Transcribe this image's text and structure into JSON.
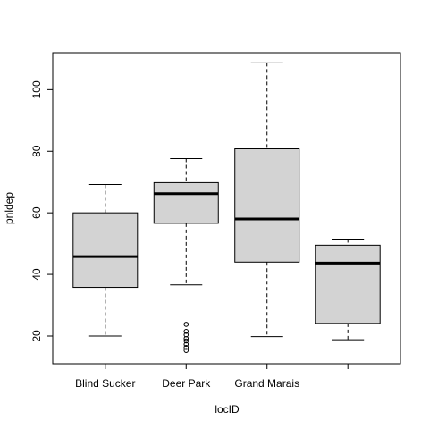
{
  "chart_data": {
    "type": "box",
    "xlabel": "locID",
    "ylabel": "pnldep",
    "ylim": [
      11,
      112
    ],
    "yticks": [
      20,
      40,
      60,
      80,
      100
    ],
    "categories": [
      "Blind Sucker",
      "Deer Park",
      "Grand Marais",
      ""
    ],
    "boxes": [
      {
        "category": "Blind Sucker",
        "whisker_low": 20,
        "q1": 35.8,
        "median": 45.8,
        "q3": 60,
        "whisker_high": 69.2,
        "outliers": []
      },
      {
        "category": "Deer Park",
        "whisker_low": 36.6,
        "q1": 56.6,
        "median": 66.2,
        "q3": 69.8,
        "whisker_high": 77.6,
        "outliers": [
          23.8,
          21.5,
          20.4,
          19.2,
          18.4,
          17.3,
          16.3,
          15.3
        ]
      },
      {
        "category": "Grand Marais",
        "whisker_low": 19.8,
        "q1": 44,
        "median": 58,
        "q3": 80.8,
        "whisker_high": 108.7,
        "outliers": []
      },
      {
        "category": "",
        "whisker_low": 18.8,
        "q1": 24.1,
        "median": 43.7,
        "q3": 49.5,
        "whisker_high": 51.5,
        "outliers": []
      }
    ],
    "box_fill": "#d3d3d3",
    "grid": false
  }
}
